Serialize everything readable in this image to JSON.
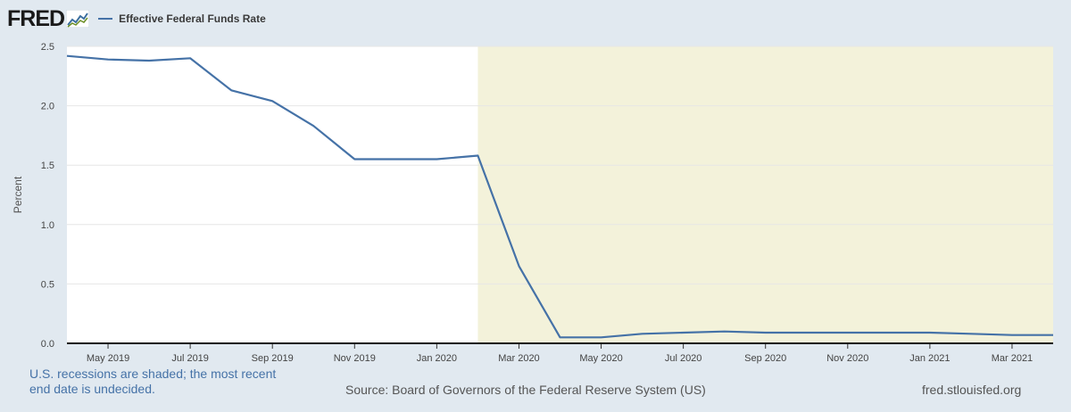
{
  "header": {
    "logo_text": "FRED",
    "legend_label": "Effective Federal Funds Rate"
  },
  "colors": {
    "series": "#4572a7",
    "recession": "#f3f2da",
    "background": "#e1e9f0"
  },
  "chart_data": {
    "type": "line",
    "title": "",
    "xlabel": "",
    "ylabel": "Percent",
    "ylim": [
      0,
      2.5
    ],
    "yticks": [
      "0.0",
      "0.5",
      "1.0",
      "1.5",
      "2.0",
      "2.5"
    ],
    "xticks": [
      "May 2019",
      "Jul 2019",
      "Sep 2019",
      "Nov 2019",
      "Jan 2020",
      "Mar 2020",
      "May 2020",
      "Jul 2020",
      "Sep 2020",
      "Nov 2020",
      "Jan 2021",
      "Mar 2021"
    ],
    "x": [
      "2019-04",
      "2019-05",
      "2019-06",
      "2019-07",
      "2019-08",
      "2019-09",
      "2019-10",
      "2019-11",
      "2019-12",
      "2020-01",
      "2020-02",
      "2020-03",
      "2020-04",
      "2020-05",
      "2020-06",
      "2020-07",
      "2020-08",
      "2020-09",
      "2020-10",
      "2020-11",
      "2020-12",
      "2021-01",
      "2021-02",
      "2021-03",
      "2021-04"
    ],
    "series": [
      {
        "name": "Effective Federal Funds Rate",
        "values": [
          2.42,
          2.39,
          2.38,
          2.4,
          2.13,
          2.04,
          1.83,
          1.55,
          1.55,
          1.55,
          1.58,
          0.65,
          0.05,
          0.05,
          0.08,
          0.09,
          0.1,
          0.09,
          0.09,
          0.09,
          0.09,
          0.09,
          0.08,
          0.07,
          0.07
        ]
      }
    ],
    "recession_shading": {
      "start": "2020-02",
      "end": "2021-04"
    }
  },
  "footer": {
    "note": "U.S. recessions are shaded; the most recent end date is undecided.",
    "source": "Source: Board of Governors of the Federal Reserve System (US)",
    "url": "fred.stlouisfed.org"
  }
}
